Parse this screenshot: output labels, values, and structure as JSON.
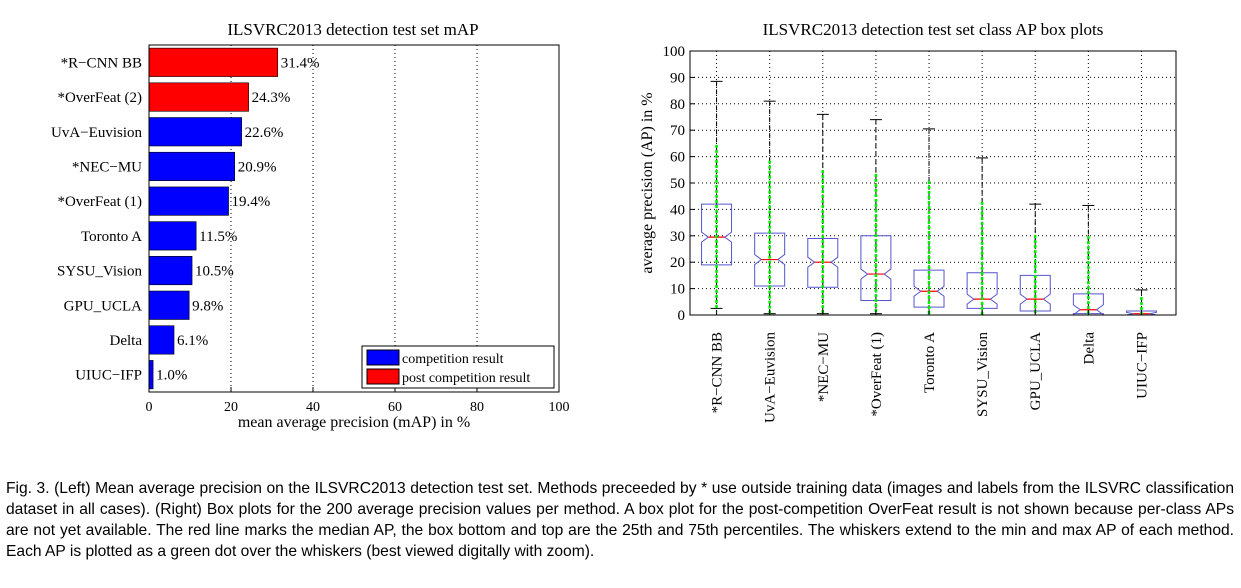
{
  "chart_data": [
    {
      "type": "bar",
      "orientation": "horizontal",
      "title": "ILSVRC2013 detection test set mAP",
      "xlabel": "mean average precision (mAP) in %",
      "ylabel": "",
      "xlim": [
        0,
        100
      ],
      "xticks": [
        0,
        20,
        40,
        60,
        80,
        100
      ],
      "grid": "vertical dotted",
      "categories": [
        "*R−CNN BB",
        "*OverFeat (2)",
        "UvA−Euvision",
        "*NEC−MU",
        "*OverFeat (1)",
        "Toronto A",
        "SYSU_Vision",
        "GPU_UCLA",
        "Delta",
        "UIUC−IFP"
      ],
      "values": [
        31.4,
        24.3,
        22.6,
        20.9,
        19.4,
        11.5,
        10.5,
        9.8,
        6.1,
        1.0
      ],
      "value_labels": [
        "31.4%",
        "24.3%",
        "22.6%",
        "20.9%",
        "19.4%",
        "11.5%",
        "10.5%",
        "9.8%",
        "6.1%",
        "1.0%"
      ],
      "groups": [
        "post",
        "post",
        "comp",
        "comp",
        "comp",
        "comp",
        "comp",
        "comp",
        "comp",
        "comp"
      ],
      "legend": {
        "placement": "bottom-right",
        "entries": [
          {
            "key": "comp",
            "label": "competition result",
            "color": "#0000ff"
          },
          {
            "key": "post",
            "label": "post competition result",
            "color": "#ff0000"
          }
        ]
      }
    },
    {
      "type": "box",
      "title": "ILSVRC2013 detection test set class AP box plots",
      "xlabel": "",
      "ylabel": "average precision (AP) in %",
      "ylim": [
        0,
        100
      ],
      "yticks": [
        0,
        10,
        20,
        30,
        40,
        50,
        60,
        70,
        80,
        90,
        100
      ],
      "grid": "dotted",
      "categories": [
        "*R−CNN BB",
        "UvA−Euvision",
        "*NEC−MU",
        "*OverFeat (1)",
        "Toronto A",
        "SYSU_Vision",
        "GPU_UCLA",
        "Delta",
        "UIUC−IFP"
      ],
      "boxes": [
        {
          "min": 2.5,
          "q1": 19,
          "median": 29.5,
          "q3": 42,
          "max": 88.5
        },
        {
          "min": 0.5,
          "q1": 11,
          "median": 21,
          "q3": 31,
          "max": 81
        },
        {
          "min": 0.5,
          "q1": 10.5,
          "median": 20,
          "q3": 29,
          "max": 76
        },
        {
          "min": 0.5,
          "q1": 5.5,
          "median": 15.5,
          "q3": 30,
          "max": 74
        },
        {
          "min": 0,
          "q1": 3,
          "median": 9,
          "q3": 17,
          "max": 70.5
        },
        {
          "min": 0,
          "q1": 2.5,
          "median": 6,
          "q3": 16,
          "max": 59.5
        },
        {
          "min": 0,
          "q1": 1.5,
          "median": 6,
          "q3": 15,
          "max": 42
        },
        {
          "min": 0,
          "q1": 0.5,
          "median": 2,
          "q3": 8,
          "max": 41.5
        },
        {
          "min": 0,
          "q1": 0,
          "median": 0.5,
          "q3": 1.5,
          "max": 9.5
        }
      ],
      "colors": {
        "box": "#5555cc",
        "median": "#ff0000",
        "whisker": "#000000",
        "points": "#00ee00"
      }
    }
  ],
  "caption": "Fig. 3. (Left) Mean average precision on the ILSVRC2013 detection test set. Methods preceeded by * use outside training data (images and labels from the ILSVRC classification dataset in all cases). (Right) Box plots for the 200 average precision values per method. A box plot for the post-competition OverFeat result is not shown because per-class APs are not yet available. The red line marks the median AP, the box bottom and top are the 25th and 75th percentiles. The whiskers extend to the min and max AP of each method. Each AP is plotted as a green dot over the whiskers (best viewed digitally with zoom)."
}
